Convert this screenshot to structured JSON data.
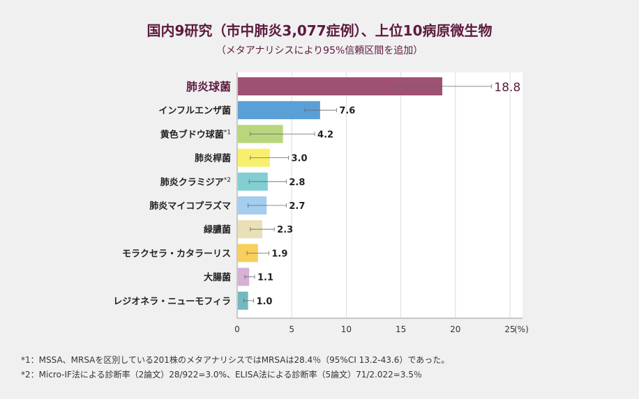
{
  "chart_data": {
    "type": "bar",
    "orientation": "horizontal",
    "title": "国内9研究（市中肺炎3,077症例）、上位10病原微生物",
    "subtitle": "（メタアナリシスにより95%信頼区間を追加）",
    "categories": [
      {
        "label": "肺炎球菌",
        "sup": ""
      },
      {
        "label": "インフルエンザ菌",
        "sup": ""
      },
      {
        "label": "黄色ブドウ球菌",
        "sup": "*1"
      },
      {
        "label": "肺炎桿菌",
        "sup": ""
      },
      {
        "label": "肺炎クラミジア",
        "sup": "*2"
      },
      {
        "label": "肺炎マイコプラズマ",
        "sup": ""
      },
      {
        "label": "緑膿菌",
        "sup": ""
      },
      {
        "label": "モラクセラ・カタラーリス",
        "sup": ""
      },
      {
        "label": "大腸菌",
        "sup": ""
      },
      {
        "label": "レジオネラ・ニューモフィラ",
        "sup": ""
      }
    ],
    "values": [
      18.8,
      7.6,
      4.2,
      3.0,
      2.8,
      2.7,
      2.3,
      1.9,
      1.1,
      1.0
    ],
    "value_labels": [
      "18.8",
      "7.6",
      "4.2",
      "3.0",
      "2.8",
      "2.7",
      "2.3",
      "1.9",
      "1.1",
      "1.0"
    ],
    "ci": [
      [
        14.5,
        23.3
      ],
      [
        6.2,
        9.1
      ],
      [
        1.2,
        7.1
      ],
      [
        1.2,
        4.7
      ],
      [
        1.1,
        4.5
      ],
      [
        1.0,
        4.5
      ],
      [
        1.2,
        3.4
      ],
      [
        0.9,
        2.9
      ],
      [
        0.7,
        1.6
      ],
      [
        0.6,
        1.5
      ]
    ],
    "colors": [
      "#9e5173",
      "#5b9fd7",
      "#b8d67b",
      "#f9ef6e",
      "#82ced3",
      "#a5cdef",
      "#e9e0b8",
      "#f6cf5c",
      "#d7b0d5",
      "#74b9bf"
    ],
    "xlim": [
      0,
      25
    ],
    "xticks": [
      "0",
      "5",
      "10",
      "15",
      "20",
      "25"
    ],
    "xunit": "(%)",
    "grid": true
  },
  "footnotes": [
    "*1：MSSA、MRSAを区別している201株のメタアナリシスではMRSAは28.4％（95%CI 13.2-43.6）であった。",
    "*2：Micro-IF法による診断率（2論文）28/922=3.0%、ELISA法による診断率（5論文）71/2.022=3.5％"
  ]
}
